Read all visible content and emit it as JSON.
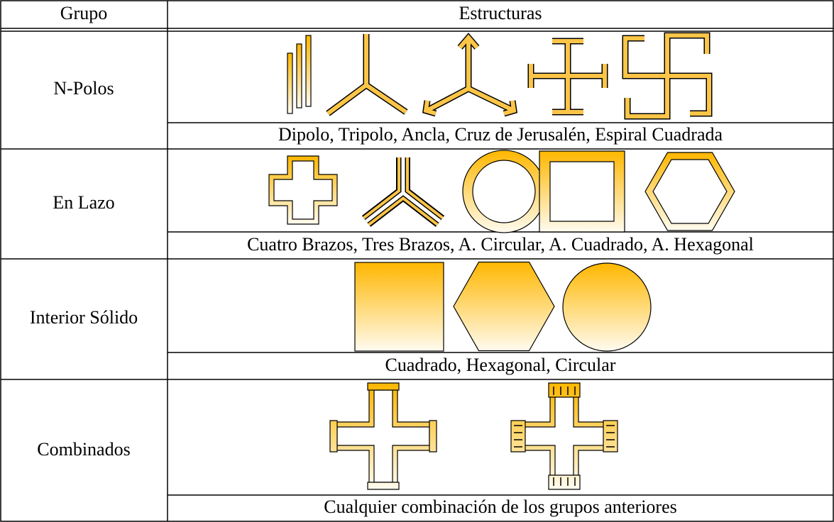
{
  "header": {
    "group": "Grupo",
    "structures": "Estructuras"
  },
  "rows": [
    {
      "group": "N-Polos",
      "caption": "Dipolo, Tripolo, Ancla, Cruz de Jerusalén, Espiral Cuadrada"
    },
    {
      "group": "En Lazo",
      "caption": "Cuatro Brazos, Tres Brazos, A. Circular, A. Cuadrado, A. Hexagonal"
    },
    {
      "group": "Interior Sólido",
      "caption": "Cuadrado, Hexagonal, Circular"
    },
    {
      "group": "Combinados",
      "caption": "Cualquier combinación de los grupos anteriores"
    }
  ]
}
